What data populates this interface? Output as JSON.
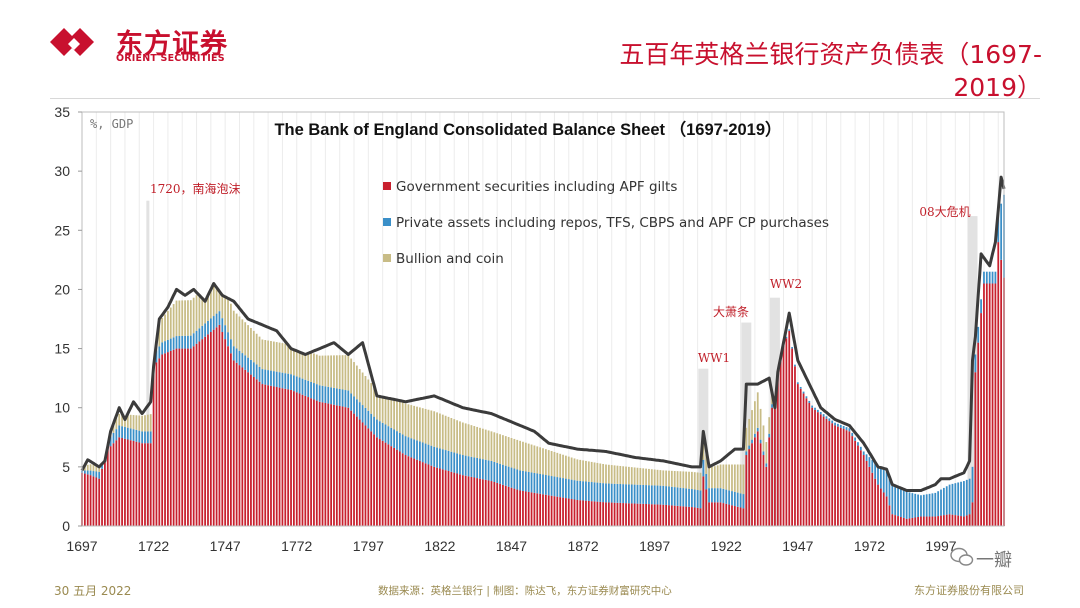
{
  "header": {
    "logo_cn": "东方证券",
    "logo_en": "ORIENT SECURITIES",
    "page_title": "五百年英格兰银行资产负债表（1697-2019）"
  },
  "footer": {
    "date": "30 五月 2022",
    "source": "数据来源：英格兰银行 | 制图：陈达飞，东方证券财富研究中心",
    "company": "东方证券股份有限公司",
    "watermark": "一瓣"
  },
  "colors": {
    "brand_red": "#c8102e",
    "government": "#c8202e",
    "private": "#3a8fc8",
    "bullion": "#c8bc86",
    "total_line": "#3b3b3b",
    "event_bar": "#e2e2e2",
    "annotation": "#c0202a"
  },
  "chart_data": {
    "type": "bar",
    "stacked": true,
    "title": "The Bank of England Consolidated Balance Sheet （1697-2019）",
    "ylabel": "%, GDP",
    "ylim": [
      0,
      35
    ],
    "yticks": [
      0,
      5,
      10,
      15,
      20,
      25,
      30,
      35
    ],
    "xlim": [
      1697,
      2019
    ],
    "xticks": [
      1697,
      1722,
      1747,
      1772,
      1797,
      1822,
      1847,
      1872,
      1897,
      1922,
      1947,
      1972,
      1997
    ],
    "legend": [
      "Government securities including APF gilts",
      "Private assets including repos, TFS, CBPS and APF CP purchases",
      "Bullion and coin"
    ],
    "legend_position": "top-center",
    "keypoints": {
      "government": [
        [
          1697,
          4.5
        ],
        [
          1700,
          4.3
        ],
        [
          1703,
          4.0
        ],
        [
          1706,
          6.5
        ],
        [
          1710,
          7.5
        ],
        [
          1718,
          7.0
        ],
        [
          1721,
          7.0
        ],
        [
          1722,
          13.5
        ],
        [
          1725,
          14.5
        ],
        [
          1730,
          15.0
        ],
        [
          1735,
          15.0
        ],
        [
          1740,
          16.0
        ],
        [
          1745,
          17.0
        ],
        [
          1750,
          14.0
        ],
        [
          1760,
          12.0
        ],
        [
          1770,
          11.5
        ],
        [
          1780,
          10.5
        ],
        [
          1790,
          10.0
        ],
        [
          1800,
          7.5
        ],
        [
          1810,
          6.0
        ],
        [
          1820,
          5.0
        ],
        [
          1830,
          4.3
        ],
        [
          1840,
          3.8
        ],
        [
          1850,
          3.0
        ],
        [
          1860,
          2.6
        ],
        [
          1870,
          2.2
        ],
        [
          1880,
          2.0
        ],
        [
          1890,
          1.9
        ],
        [
          1900,
          1.8
        ],
        [
          1910,
          1.6
        ],
        [
          1913,
          1.5
        ],
        [
          1914,
          4.2
        ],
        [
          1916,
          2.0
        ],
        [
          1920,
          2.0
        ],
        [
          1928,
          1.5
        ],
        [
          1929,
          6.0
        ],
        [
          1933,
          8.0
        ],
        [
          1936,
          5.0
        ],
        [
          1938,
          10.0
        ],
        [
          1940,
          14.0
        ],
        [
          1944,
          16.5
        ],
        [
          1947,
          12.0
        ],
        [
          1952,
          10.0
        ],
        [
          1960,
          8.5
        ],
        [
          1965,
          8.0
        ],
        [
          1970,
          6.0
        ],
        [
          1975,
          3.5
        ],
        [
          1978,
          2.5
        ],
        [
          1980,
          1.0
        ],
        [
          1985,
          0.6
        ],
        [
          1990,
          0.8
        ],
        [
          1995,
          0.8
        ],
        [
          2000,
          1.0
        ],
        [
          2005,
          0.8
        ],
        [
          2007,
          1.0
        ],
        [
          2008,
          2.0
        ],
        [
          2009,
          13.0
        ],
        [
          2012,
          20.5
        ],
        [
          2016,
          20.5
        ],
        [
          2017,
          24.0
        ],
        [
          2019,
          21.0
        ]
      ],
      "private": [
        [
          1697,
          0.2
        ],
        [
          1710,
          1.0
        ],
        [
          1722,
          1.0
        ],
        [
          1750,
          1.2
        ],
        [
          1780,
          1.4
        ],
        [
          1800,
          1.5
        ],
        [
          1820,
          1.7
        ],
        [
          1850,
          1.7
        ],
        [
          1880,
          1.6
        ],
        [
          1900,
          1.6
        ],
        [
          1913,
          1.5
        ],
        [
          1916,
          1.2
        ],
        [
          1928,
          1.2
        ],
        [
          1929,
          0.3
        ],
        [
          1938,
          0.3
        ],
        [
          1940,
          0.1
        ],
        [
          1970,
          0.3
        ],
        [
          1975,
          1.6
        ],
        [
          1980,
          2.4
        ],
        [
          1985,
          2.3
        ],
        [
          1990,
          1.8
        ],
        [
          1995,
          2.0
        ],
        [
          2000,
          2.5
        ],
        [
          2005,
          3.0
        ],
        [
          2007,
          3.0
        ],
        [
          2008,
          3.0
        ],
        [
          2009,
          1.5
        ],
        [
          2012,
          1.0
        ],
        [
          2016,
          1.0
        ],
        [
          2017,
          2.5
        ],
        [
          2019,
          7.0
        ]
      ],
      "bullion": [
        [
          1697,
          0.4
        ],
        [
          1722,
          1.5
        ],
        [
          1730,
          3.0
        ],
        [
          1740,
          3.0
        ],
        [
          1750,
          3.0
        ],
        [
          1760,
          2.5
        ],
        [
          1780,
          2.5
        ],
        [
          1790,
          3.0
        ],
        [
          1800,
          2.5
        ],
        [
          1820,
          3.0
        ],
        [
          1840,
          2.5
        ],
        [
          1850,
          2.5
        ],
        [
          1870,
          1.8
        ],
        [
          1880,
          1.6
        ],
        [
          1900,
          1.3
        ],
        [
          1913,
          1.5
        ],
        [
          1920,
          2.0
        ],
        [
          1928,
          2.5
        ],
        [
          1929,
          2.0
        ],
        [
          1933,
          3.0
        ],
        [
          1938,
          1.0
        ],
        [
          1940,
          0.0
        ]
      ],
      "total": [
        [
          1697,
          4.7
        ],
        [
          1699,
          5.6
        ],
        [
          1703,
          5.0
        ],
        [
          1705,
          5.5
        ],
        [
          1707,
          8.0
        ],
        [
          1710,
          10.0
        ],
        [
          1712,
          9.0
        ],
        [
          1715,
          10.5
        ],
        [
          1718,
          9.5
        ],
        [
          1721,
          10.5
        ],
        [
          1722,
          13.5
        ],
        [
          1724,
          17.5
        ],
        [
          1727,
          18.5
        ],
        [
          1730,
          20.0
        ],
        [
          1733,
          19.5
        ],
        [
          1736,
          20.0
        ],
        [
          1740,
          19.0
        ],
        [
          1743,
          20.5
        ],
        [
          1746,
          19.5
        ],
        [
          1750,
          19.0
        ],
        [
          1755,
          17.5
        ],
        [
          1760,
          17.0
        ],
        [
          1765,
          16.5
        ],
        [
          1770,
          15.0
        ],
        [
          1775,
          14.5
        ],
        [
          1780,
          15.0
        ],
        [
          1785,
          15.5
        ],
        [
          1790,
          14.5
        ],
        [
          1795,
          15.5
        ],
        [
          1800,
          11.0
        ],
        [
          1810,
          10.5
        ],
        [
          1820,
          11.0
        ],
        [
          1830,
          10.0
        ],
        [
          1840,
          9.5
        ],
        [
          1850,
          8.5
        ],
        [
          1855,
          8.0
        ],
        [
          1860,
          7.0
        ],
        [
          1870,
          6.5
        ],
        [
          1880,
          6.3
        ],
        [
          1890,
          5.8
        ],
        [
          1900,
          5.5
        ],
        [
          1910,
          5.0
        ],
        [
          1913,
          5.0
        ],
        [
          1914,
          8.0
        ],
        [
          1916,
          5.0
        ],
        [
          1920,
          5.5
        ],
        [
          1925,
          6.5
        ],
        [
          1928,
          6.5
        ],
        [
          1929,
          12.0
        ],
        [
          1933,
          12.0
        ],
        [
          1937,
          12.5
        ],
        [
          1939,
          10.0
        ],
        [
          1940,
          13.0
        ],
        [
          1944,
          18.0
        ],
        [
          1947,
          14.0
        ],
        [
          1950,
          12.5
        ],
        [
          1955,
          10.0
        ],
        [
          1960,
          9.0
        ],
        [
          1965,
          8.5
        ],
        [
          1970,
          7.0
        ],
        [
          1975,
          5.0
        ],
        [
          1978,
          4.8
        ],
        [
          1980,
          3.5
        ],
        [
          1985,
          3.0
        ],
        [
          1990,
          3.0
        ],
        [
          1995,
          3.5
        ],
        [
          1997,
          4.0
        ],
        [
          2000,
          4.0
        ],
        [
          2005,
          4.5
        ],
        [
          2007,
          5.5
        ],
        [
          2008,
          14.0
        ],
        [
          2009,
          16.0
        ],
        [
          2011,
          23.0
        ],
        [
          2014,
          22.0
        ],
        [
          2016,
          24.0
        ],
        [
          2018,
          29.5
        ],
        [
          2019,
          28.5
        ]
      ]
    },
    "event_bars": [
      {
        "year": 1720,
        "value": 27.5,
        "label": "1720，南海泡沫"
      },
      {
        "year": 1914,
        "value": 13.3,
        "label": "WW1"
      },
      {
        "year": 1929,
        "value": 17.2,
        "label": "大萧条"
      },
      {
        "year": 1939,
        "value": 19.3,
        "label": "WW2"
      },
      {
        "year": 2008,
        "value": 26.2,
        "label": "08大危机"
      }
    ]
  }
}
